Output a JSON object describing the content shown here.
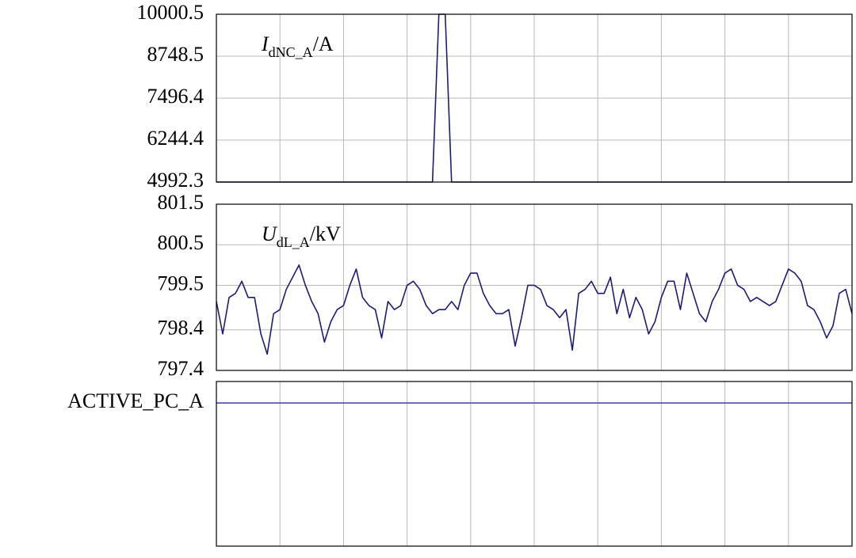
{
  "chart_data": [
    {
      "type": "line",
      "title": {
        "symbol": "I",
        "subscript": "dNC_A",
        "unit": "/A"
      },
      "color": "#1c1c78",
      "ylim": [
        4992.3,
        10000.5
      ],
      "yticks": [
        4992.3,
        6244.4,
        7496.4,
        8748.5,
        10000.5
      ],
      "grid": true,
      "values": [
        4992.3,
        4992.3,
        4992.3,
        4992.3,
        4992.3,
        4992.3,
        4992.3,
        4992.3,
        4992.3,
        4992.3,
        4992.3,
        4992.3,
        4992.3,
        4992.3,
        4992.3,
        4992.3,
        4992.3,
        4992.3,
        4992.3,
        4992.3,
        4992.3,
        4992.3,
        4992.3,
        4992.3,
        4992.3,
        4992.3,
        4992.3,
        4992.3,
        4992.3,
        4992.3,
        4992.3,
        4992.3,
        4992.3,
        4992.3,
        4992.3,
        10000.5,
        10000.5,
        4992.3,
        4992.3,
        4992.3,
        4992.3,
        4992.3,
        4992.3,
        4992.3,
        4992.3,
        4992.3,
        4992.3,
        4992.3,
        4992.3,
        4992.3,
        4992.3,
        4992.3,
        4992.3,
        4992.3,
        4992.3,
        4992.3,
        4992.3,
        4992.3,
        4992.3,
        4992.3,
        4992.3,
        4992.3,
        4992.3,
        4992.3,
        4992.3,
        4992.3,
        4992.3,
        4992.3,
        4992.3,
        4992.3,
        4992.3,
        4992.3,
        4992.3,
        4992.3,
        4992.3,
        4992.3,
        4992.3,
        4992.3,
        4992.3,
        4992.3,
        4992.3,
        4992.3,
        4992.3,
        4992.3,
        4992.3,
        4992.3,
        4992.3,
        4992.3,
        4992.3,
        4992.3,
        4992.3,
        4992.3,
        4992.3,
        4992.3,
        4992.3,
        4992.3,
        4992.3,
        4992.3,
        4992.3,
        4992.3,
        4992.3
      ]
    },
    {
      "type": "line",
      "title": {
        "symbol": "U",
        "subscript": "dL_A",
        "unit": "/kV"
      },
      "color": "#1c1c78",
      "ylim": [
        797.4,
        801.5
      ],
      "yticks": [
        797.4,
        798.4,
        799.5,
        800.5,
        801.5
      ],
      "grid": true,
      "values": [
        799.1,
        798.3,
        799.2,
        799.3,
        799.6,
        799.2,
        799.2,
        798.3,
        797.8,
        798.8,
        798.9,
        799.4,
        799.7,
        800.0,
        799.5,
        799.1,
        798.8,
        798.1,
        798.6,
        798.9,
        799.0,
        799.5,
        799.9,
        799.2,
        799.0,
        798.9,
        798.2,
        799.1,
        798.9,
        799.0,
        799.5,
        799.6,
        799.4,
        799.0,
        798.8,
        798.9,
        798.9,
        799.1,
        798.9,
        799.5,
        799.8,
        799.8,
        799.3,
        799.0,
        798.8,
        798.8,
        798.9,
        798.0,
        798.7,
        799.5,
        799.5,
        799.4,
        799.0,
        798.9,
        798.7,
        798.9,
        797.9,
        799.3,
        799.4,
        799.6,
        799.3,
        799.3,
        799.7,
        798.8,
        799.4,
        798.7,
        799.2,
        798.9,
        798.3,
        798.6,
        799.2,
        799.6,
        799.6,
        798.9,
        799.8,
        799.3,
        798.8,
        798.6,
        799.1,
        799.4,
        799.8,
        799.9,
        799.5,
        799.4,
        799.1,
        799.2,
        799.1,
        799.0,
        799.1,
        799.5,
        799.9,
        799.8,
        799.6,
        799.0,
        798.9,
        798.6,
        798.2,
        798.5,
        799.3,
        799.4,
        798.8
      ]
    },
    {
      "type": "line",
      "ylabel": "ACTIVE_PC_A",
      "color": "#3c3ca8",
      "ylim": [
        0,
        1.15
      ],
      "grid": true,
      "values": [
        1,
        1
      ]
    }
  ]
}
